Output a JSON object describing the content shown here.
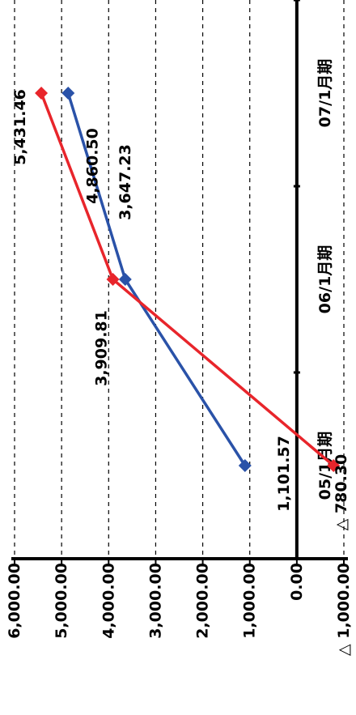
{
  "chart_data": {
    "type": "line",
    "orientation": "rotated-90-clockwise",
    "categories": [
      "05/1月期",
      "06/1月期",
      "07/1月期"
    ],
    "series": [
      {
        "color": "#2a52a8",
        "values": [
          1101.57,
          3647.23,
          4860.5
        ],
        "labels": [
          "1,101.57",
          "3,647.23",
          "4,860.50"
        ]
      },
      {
        "color": "#e8252b",
        "values": [
          -780.3,
          3909.81,
          5431.46
        ],
        "labels": [
          "△ 780.30",
          "3,909.81",
          "5,431.46"
        ]
      }
    ],
    "ylim": [
      -1000,
      6000
    ],
    "yticks": [
      {
        "value": 6000,
        "label": "6,000.00"
      },
      {
        "value": 5000,
        "label": "5,000.00"
      },
      {
        "value": 4000,
        "label": "4,000.00"
      },
      {
        "value": 3000,
        "label": "3,000.00"
      },
      {
        "value": 2000,
        "label": "2,000.00"
      },
      {
        "value": 1000,
        "label": "1,000.00"
      },
      {
        "value": 0,
        "label": "0.00"
      },
      {
        "value": -1000,
        "label": "△ 1,000.00"
      }
    ],
    "grid": true,
    "legend": "none",
    "title": "",
    "xlabel": "",
    "ylabel": ""
  }
}
